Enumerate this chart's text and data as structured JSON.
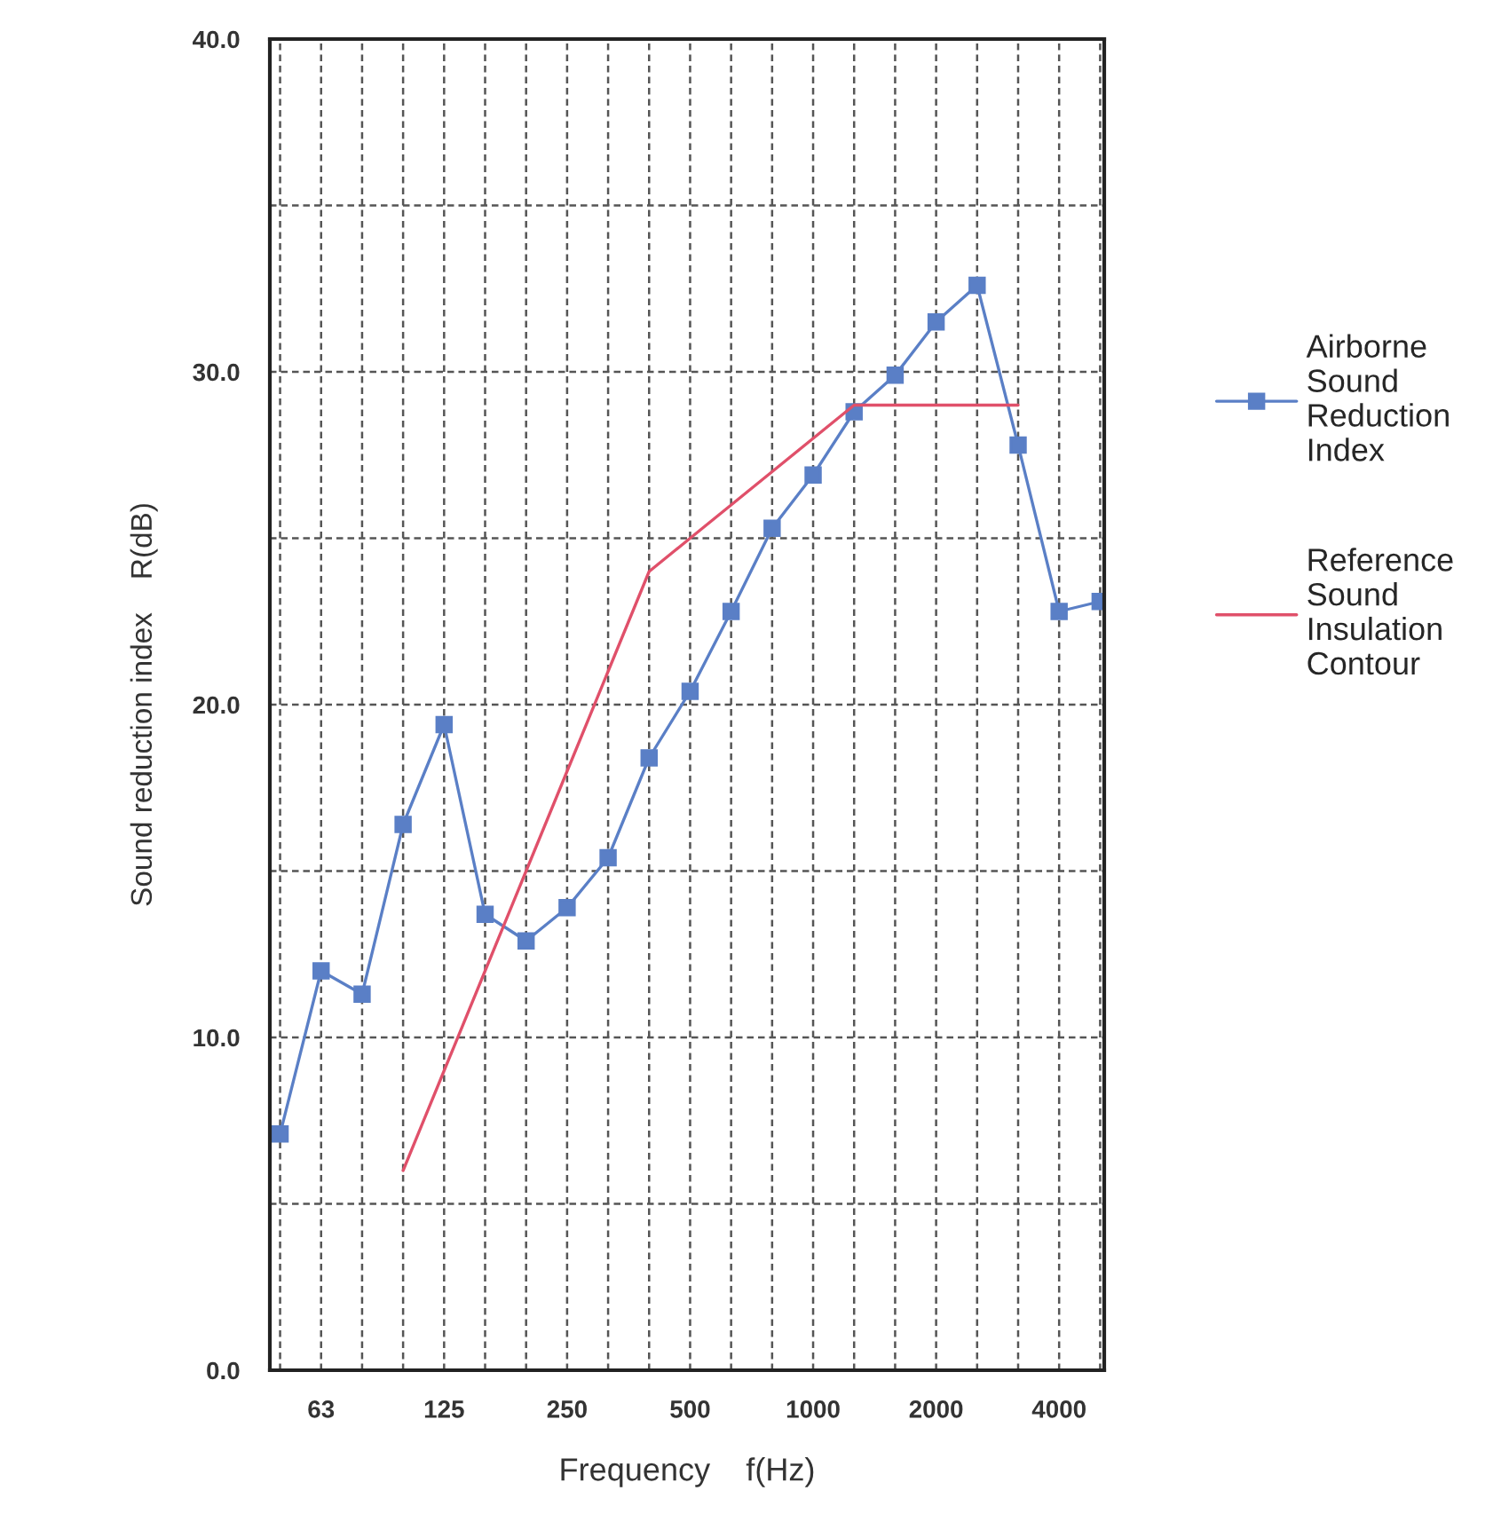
{
  "chart_data": {
    "type": "line",
    "xlabel": "Frequency    f(Hz)",
    "ylabel": "Sound reduction index    R(dB)",
    "categories": [
      null,
      "63",
      null,
      null,
      "125",
      null,
      null,
      "250",
      null,
      null,
      "500",
      null,
      null,
      "1000",
      null,
      null,
      "2000",
      null,
      null,
      "4000",
      null
    ],
    "series": [
      {
        "name": "Airborne Sound Reduction Index",
        "color": "#5a7fc6",
        "marker": "square",
        "values": [
          7.1,
          12.0,
          11.3,
          16.4,
          19.4,
          13.7,
          12.9,
          13.9,
          15.4,
          18.4,
          20.4,
          22.8,
          25.3,
          26.9,
          28.8,
          29.9,
          31.5,
          32.6,
          27.8,
          22.8,
          23.1
        ]
      },
      {
        "name": "Reference Sound Insulation Contour",
        "color": "#e0506a",
        "marker": "none",
        "values": [
          null,
          null,
          null,
          6,
          9,
          12,
          15,
          18,
          21,
          24,
          25,
          26,
          27,
          28,
          29,
          29,
          29,
          29,
          29,
          null,
          null
        ]
      }
    ],
    "ylim": [
      0,
      40
    ],
    "yticks": [
      {
        "value": 0,
        "label": "0.0"
      },
      {
        "value": 5,
        "label": null
      },
      {
        "value": 10,
        "label": "10.0"
      },
      {
        "value": 15,
        "label": null
      },
      {
        "value": 20,
        "label": "20.0"
      },
      {
        "value": 25,
        "label": null
      },
      {
        "value": 30,
        "label": "30.0"
      },
      {
        "value": 35,
        "label": null
      },
      {
        "value": 40,
        "label": "40.0"
      }
    ],
    "grid": true,
    "legend": "right",
    "line_style": "solid"
  }
}
